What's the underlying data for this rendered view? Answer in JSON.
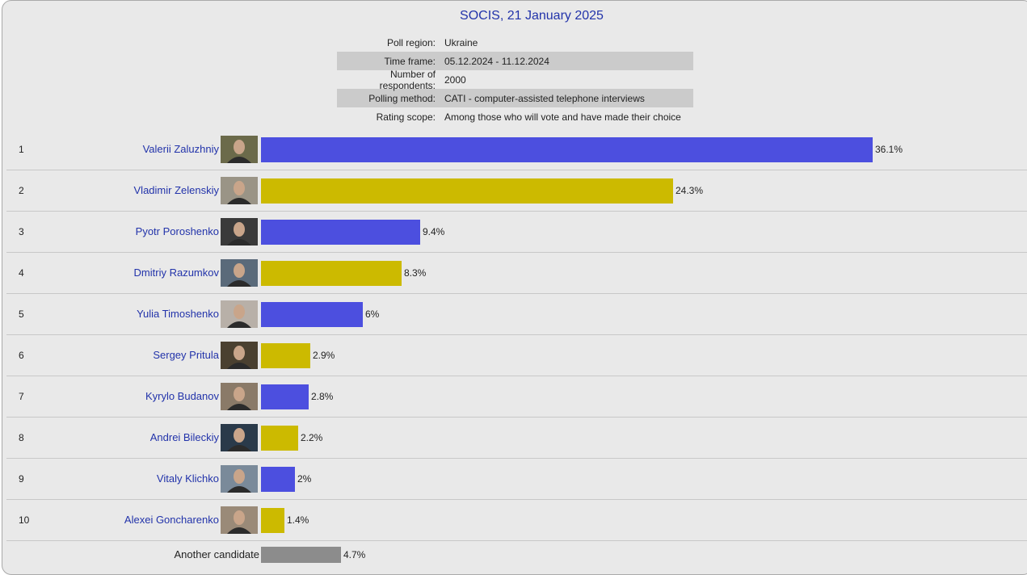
{
  "poll": {
    "title": "SOCIS, 21 January 2025",
    "meta": [
      {
        "key": "Poll region:",
        "value": "Ukraine"
      },
      {
        "key": "Time frame:",
        "value": "05.12.2024 - 11.12.2024"
      },
      {
        "key": "Number of respondents:",
        "value": "2000"
      },
      {
        "key": "Polling method:",
        "value": "CATI - computer-assisted telephone interviews"
      },
      {
        "key": "Rating scope:",
        "value": "Among those who will vote and have made their choice"
      }
    ]
  },
  "colors": {
    "blue": "#4c4fdf",
    "yellow": "#ccba00",
    "grey": "#8c8c8c",
    "link": "#2233aa"
  },
  "chart_data": {
    "type": "bar",
    "orientation": "horizontal",
    "categories": [
      "Valerii Zaluzhniy",
      "Vladimir Zelenskiy",
      "Pyotr Poroshenko",
      "Dmitriy Razumkov",
      "Yulia Timoshenko",
      "Sergey Pritula",
      "Kyrylo Budanov",
      "Andrei Bileckiy",
      "Vitaly Klichko",
      "Alexei Goncharenko",
      "Another candidate"
    ],
    "ranks": [
      "1",
      "2",
      "3",
      "4",
      "5",
      "6",
      "7",
      "8",
      "9",
      "10",
      ""
    ],
    "values": [
      36.1,
      24.3,
      9.4,
      8.3,
      6,
      2.9,
      2.8,
      2.2,
      2,
      1.4,
      4.7
    ],
    "value_labels": [
      "36.1%",
      "24.3%",
      "9.4%",
      "8.3%",
      "6%",
      "2.9%",
      "2.8%",
      "2.2%",
      "2%",
      "1.4%",
      "4.7%"
    ],
    "bar_colors": [
      "blue",
      "yellow",
      "blue",
      "yellow",
      "blue",
      "yellow",
      "blue",
      "yellow",
      "blue",
      "yellow",
      "grey"
    ],
    "has_photo": [
      true,
      true,
      true,
      true,
      true,
      true,
      true,
      true,
      true,
      true,
      false
    ],
    "xlim": [
      0,
      36.1
    ],
    "grid": false,
    "legend": "none"
  }
}
